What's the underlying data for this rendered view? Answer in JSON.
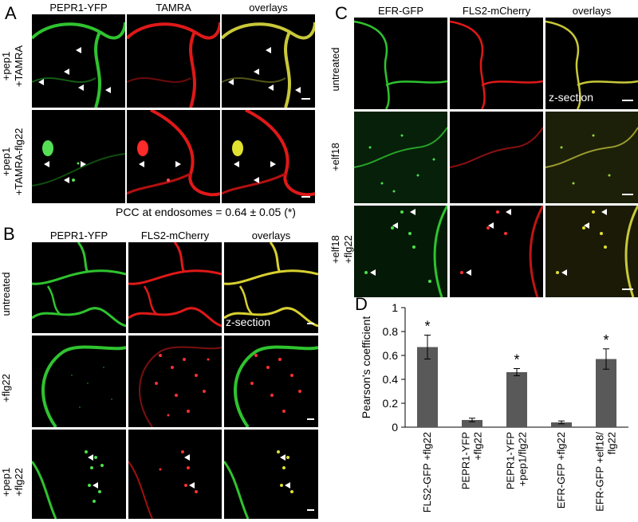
{
  "panel_letters": {
    "a": "A",
    "b": "B",
    "c": "C",
    "d": "D"
  },
  "panelA": {
    "columns": [
      "PEPR1-YFP",
      "TAMRA",
      "overlays"
    ],
    "rows": [
      {
        "line1": "+pep1",
        "line2": "+TAMRA"
      },
      {
        "line1": "+pep1",
        "line2": "+TAMRA-flg22"
      }
    ],
    "pcc_text": "PCC at endosomes = 0.64 ± 0.05 (*)"
  },
  "panelB": {
    "columns": [
      "PEPR1-YFP",
      "FLS2-mCherry",
      "overlays"
    ],
    "rows": [
      {
        "line1": "untreated",
        "line2": ""
      },
      {
        "line1": "+flg22",
        "line2": ""
      },
      {
        "line1": "+pep1",
        "line2": "+flg22"
      }
    ],
    "zsection": "z-section"
  },
  "panelC": {
    "columns": [
      "EFR-GFP",
      "FLS2-mCherry",
      "overlays"
    ],
    "rows": [
      {
        "line1": "untreated",
        "line2": ""
      },
      {
        "line1": "+elf18",
        "line2": ""
      },
      {
        "line1": "+elf18",
        "line2": "+flg22"
      }
    ],
    "zsection": "z-section"
  },
  "colors": {
    "green": "#2fc32f",
    "red": "#e01818",
    "yellow": "#c8c83a",
    "bar": "#595959"
  },
  "chart_data": {
    "type": "bar",
    "ylabel": "Pearson's coefficient",
    "ylim": [
      0,
      1
    ],
    "yticks": [
      0,
      0.2,
      0.4,
      0.6,
      0.8,
      1
    ],
    "ytick_labels": [
      "0",
      "0.2",
      "0.4",
      "0.6",
      "0.8",
      "1"
    ],
    "categories": [
      [
        "FLS2-GFP +flg22"
      ],
      [
        "PEPR1-YFP",
        "+flg22"
      ],
      [
        "PEPR1-YFP",
        "+pep1/flg22"
      ],
      [
        "EFR-GFP +flg22"
      ],
      [
        "EFR-GFP +elf18/",
        "flg22"
      ]
    ],
    "values": [
      0.67,
      0.06,
      0.46,
      0.04,
      0.57
    ],
    "errors": [
      0.1,
      0.015,
      0.03,
      0.012,
      0.085
    ],
    "significance": [
      "*",
      "",
      "*",
      "",
      "*"
    ],
    "grid": false
  }
}
